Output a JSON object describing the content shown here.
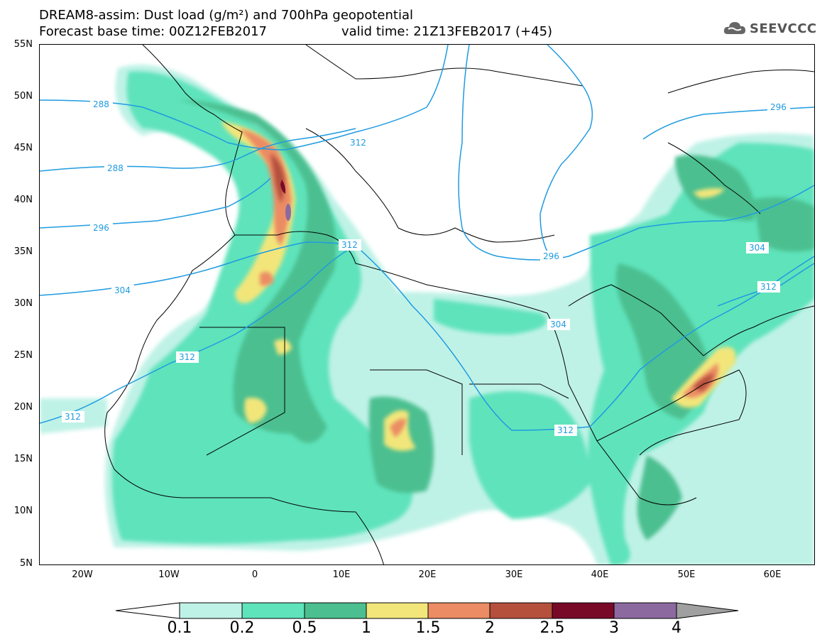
{
  "header": {
    "title_line1": "DREAM8-assim: Dust load (g/m²) and 700hPa geopotential",
    "title_line2_base": "Forecast base time: 00Z12FEB2017",
    "title_line2_valid": "valid time: 21Z13FEB2017 (+45)",
    "logo_text": "SEEVCCC"
  },
  "axes": {
    "lat_labels": [
      "55N",
      "50N",
      "45N",
      "40N",
      "35N",
      "30N",
      "25N",
      "20N",
      "15N",
      "10N",
      "5N"
    ],
    "lon_labels": [
      "20W",
      "10W",
      "0",
      "10E",
      "20E",
      "30E",
      "40E",
      "50E",
      "60E"
    ]
  },
  "contour_labels": [
    "288",
    "288",
    "296",
    "296",
    "304",
    "312",
    "312",
    "312",
    "312",
    "296",
    "304",
    "312",
    "304",
    "312"
  ],
  "colorbar": {
    "labels": [
      "0.1",
      "0.2",
      "0.5",
      "1",
      "1.5",
      "2",
      "2.5",
      "3",
      "4"
    ],
    "colors": [
      "#bff2e6",
      "#5fe3bb",
      "#4cbf90",
      "#f2e67a",
      "#eb8c64",
      "#b4503c",
      "#780a28",
      "#8c6aa0",
      "#a0a0a0"
    ]
  },
  "colors": {
    "contour_line": "#1f9be0",
    "land_border": "#000000"
  }
}
